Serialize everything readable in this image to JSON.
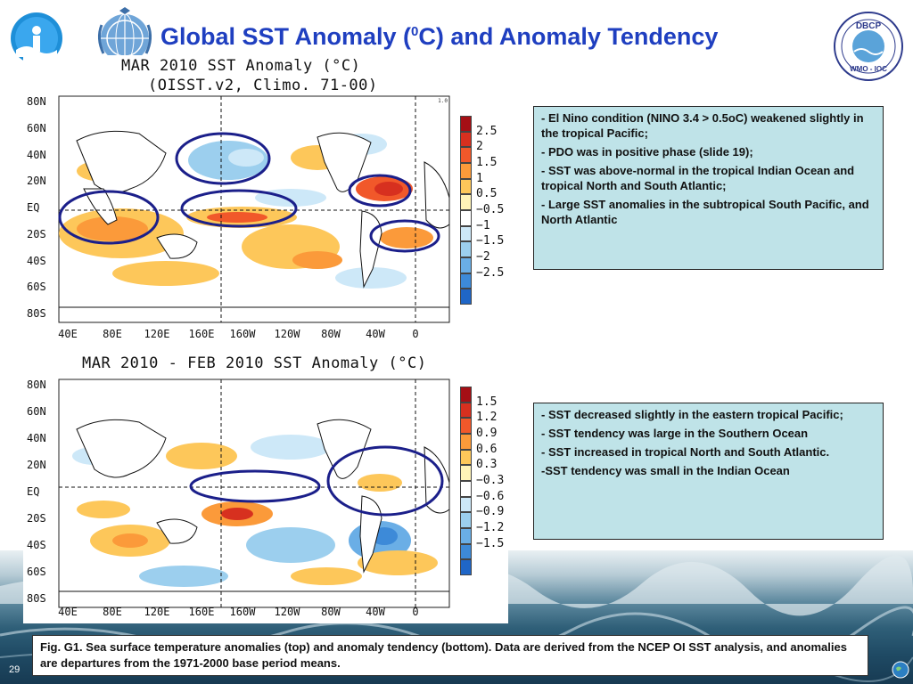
{
  "slide": {
    "title_prefix": "Global SST Anomaly (",
    "title_sup": "0",
    "title_suffix": "C) and Anomaly Tendency",
    "page_number": "29"
  },
  "logos": {
    "right_logo_top": "DBCP",
    "right_logo_bottom": "WMO - IOC",
    "right_logo_ring": "DATA BUOY COOPERATION PANEL"
  },
  "top_map": {
    "title_line1": "MAR 2010 SST Anomaly (°C)",
    "title_line2": "(OISST.v2, Climo. 71-00)",
    "y_labels": [
      "80N",
      "60N",
      "40N",
      "20N",
      "EQ",
      "20S",
      "40S",
      "60S",
      "80S"
    ],
    "x_labels": [
      "40E",
      "80E",
      "120E",
      "160E",
      "160W",
      "120W",
      "80W",
      "40W",
      "0"
    ],
    "colorbar": {
      "labels": [
        "2.5",
        "2",
        "1.5",
        "1",
        "0.5",
        "-0.5",
        "-1",
        "-1.5",
        "-2",
        "-2.5"
      ],
      "colors": [
        "#a50f15",
        "#d7301f",
        "#f1582a",
        "#fb9a3a",
        "#fdc75a",
        "#fff3b8",
        "#ffffff",
        "#cde8f8",
        "#9ccfee",
        "#6aaee6",
        "#3d8ad8",
        "#1f66c7"
      ]
    },
    "corner_mark": "1.0"
  },
  "bottom_map": {
    "title": "MAR 2010 - FEB 2010 SST Anomaly (°C)",
    "y_labels": [
      "80N",
      "60N",
      "40N",
      "20N",
      "EQ",
      "20S",
      "40S",
      "60S",
      "80S"
    ],
    "x_labels": [
      "40E",
      "80E",
      "120E",
      "160E",
      "160W",
      "120W",
      "80W",
      "40W",
      "0"
    ],
    "colorbar": {
      "labels": [
        "1.5",
        "1.2",
        "0.9",
        "0.6",
        "0.3",
        "-0.3",
        "-0.6",
        "-0.9",
        "-1.2",
        "-1.5"
      ],
      "colors": [
        "#a50f15",
        "#d7301f",
        "#f1582a",
        "#fb9a3a",
        "#fdc75a",
        "#fff3b8",
        "#ffffff",
        "#cde8f8",
        "#9ccfee",
        "#6aaee6",
        "#3d8ad8",
        "#1f66c7"
      ]
    }
  },
  "notes_top": [
    "- El Nino condition (NINO 3.4 > 0.5oC) weakened slightly in the tropical Pacific;",
    "- PDO was in positive phase (slide 19);",
    "- SST was above-normal in the tropical Indian Ocean and tropical North and South Atlantic;",
    "- Large SST anomalies in the subtropical South Pacific, and North Atlantic"
  ],
  "notes_bottom": [
    "- SST decreased slightly in the eastern tropical Pacific;",
    "- SST tendency was large in the Southern Ocean",
    "- SST increased in tropical North and South Atlantic.",
    "-SST tendency was small in the Indian Ocean"
  ],
  "caption": "Fig. G1. Sea surface temperature anomalies (top) and anomaly tendency (bottom). Data are derived from the NCEP OI SST analysis, and anomalies are departures from the 1971-2000 base period means."
}
